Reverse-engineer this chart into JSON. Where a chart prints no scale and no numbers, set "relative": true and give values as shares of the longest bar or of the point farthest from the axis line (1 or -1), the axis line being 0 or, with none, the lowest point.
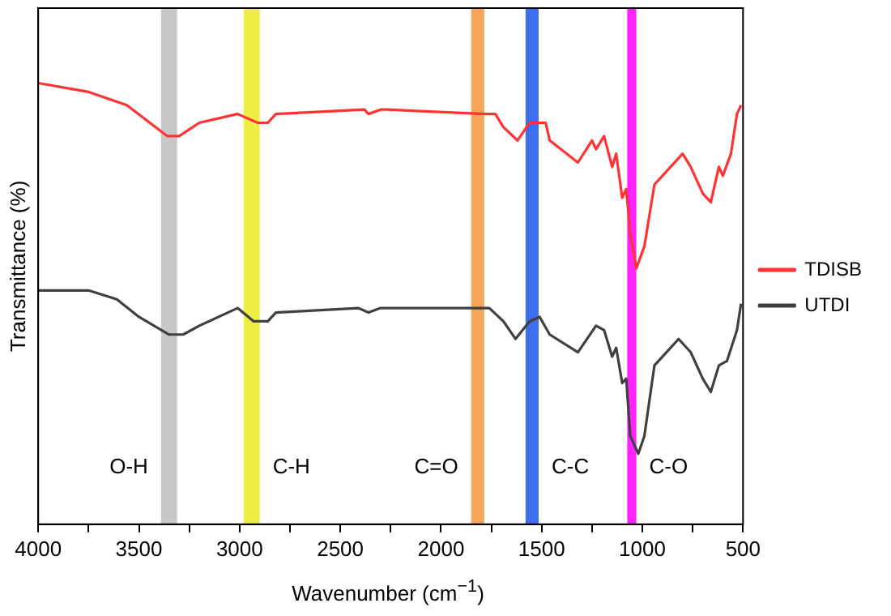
{
  "chart_data": {
    "type": "line",
    "xlabel": "Wavenumber (cm$^{−1}$)",
    "ylabel": "Transmittance (%)",
    "relative": true,
    "legend": "right",
    "marker": "none",
    "line_style": "solid",
    "grid": false,
    "xlim": [
      4000,
      500
    ],
    "xticks": [
      4000,
      {
        "value": 3750,
        "label": null
      },
      3500,
      {
        "value": 3250,
        "label": null
      },
      3000,
      {
        "value": 2750,
        "label": null
      },
      2500,
      {
        "value": 2250,
        "label": null
      },
      2000,
      {
        "value": 1750,
        "label": null
      },
      1500,
      {
        "value": 1250,
        "label": null
      },
      1000,
      {
        "value": 750,
        "label": null
      },
      500
    ],
    "series": [
      {
        "name": "TDISB",
        "color": "#ff3333",
        "x": [
          4000,
          3750,
          3560,
          3360,
          3300,
          3200,
          3010,
          2910,
          2860,
          2820,
          2380,
          2360,
          2300,
          2270,
          1780,
          1730,
          1690,
          1620,
          1560,
          1480,
          1460,
          1320,
          1250,
          1230,
          1190,
          1150,
          1130,
          1100,
          1080,
          1060,
          1030,
          990,
          940,
          800,
          760,
          700,
          660,
          620,
          600,
          560,
          530,
          510
        ],
        "values": [
          1.0,
          0.98,
          0.95,
          0.88,
          0.88,
          0.91,
          0.93,
          0.91,
          0.91,
          0.93,
          0.94,
          0.93,
          0.94,
          0.94,
          0.93,
          0.93,
          0.9,
          0.87,
          0.91,
          0.91,
          0.87,
          0.82,
          0.87,
          0.85,
          0.88,
          0.81,
          0.84,
          0.74,
          0.76,
          0.66,
          0.58,
          0.63,
          0.77,
          0.84,
          0.81,
          0.75,
          0.73,
          0.81,
          0.79,
          0.84,
          0.93,
          0.95
        ]
      },
      {
        "name": "UTDI",
        "color": "#404040",
        "x": [
          4000,
          3750,
          3610,
          3500,
          3350,
          3280,
          3200,
          3010,
          2930,
          2860,
          2820,
          2410,
          2360,
          2300,
          2270,
          1760,
          1690,
          1630,
          1560,
          1510,
          1460,
          1320,
          1230,
          1190,
          1150,
          1130,
          1100,
          1080,
          1060,
          1020,
          990,
          940,
          820,
          760,
          700,
          660,
          620,
          580,
          530,
          510
        ],
        "values": [
          0.53,
          0.53,
          0.51,
          0.47,
          0.43,
          0.43,
          0.45,
          0.49,
          0.46,
          0.46,
          0.48,
          0.49,
          0.48,
          0.49,
          0.49,
          0.49,
          0.46,
          0.42,
          0.46,
          0.47,
          0.43,
          0.39,
          0.45,
          0.44,
          0.38,
          0.4,
          0.32,
          0.33,
          0.2,
          0.16,
          0.2,
          0.36,
          0.42,
          0.39,
          0.33,
          0.3,
          0.36,
          0.37,
          0.44,
          0.5
        ]
      }
    ],
    "bands": [
      {
        "axis": "x",
        "from": 3390,
        "to": 3310,
        "label": "O-H",
        "color": "#c8c8c8"
      },
      {
        "axis": "x",
        "from": 2980,
        "to": 2900,
        "label": "C-H",
        "color": "#eeee44"
      },
      {
        "axis": "x",
        "from": 1850,
        "to": 1785,
        "label": "C=O",
        "color": "#f7a55a"
      },
      {
        "axis": "x",
        "from": 1580,
        "to": 1515,
        "label": "C-C",
        "color": "#3f6ef0"
      },
      {
        "axis": "x",
        "from": 1075,
        "to": 1030,
        "label": "C-O",
        "color": "#ff22ff"
      }
    ]
  }
}
